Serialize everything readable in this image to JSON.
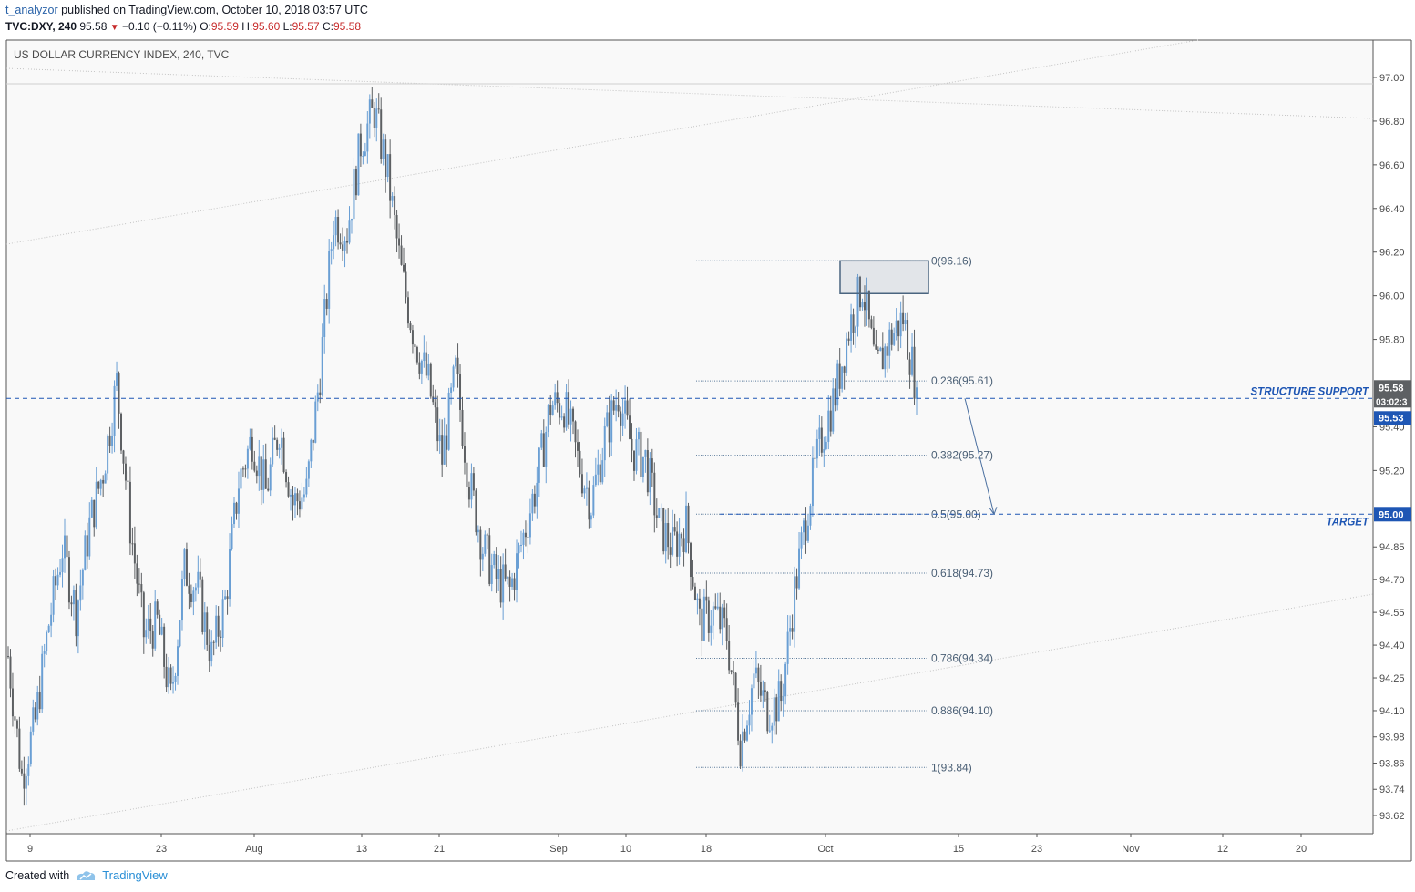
{
  "header": {
    "username": "t_analyzor",
    "published_text": "published on TradingView.com, October 10, 2018 03:57 UTC",
    "symbol": "TVC:DXY, 240",
    "last": "95.58",
    "change": "−0.10 (−0.11%)",
    "o_label": "O:",
    "o": "95.59",
    "h_label": "H:",
    "h": "95.60",
    "l_label": "L:",
    "l": "95.57",
    "c_label": "C:",
    "c": "95.58"
  },
  "footer": {
    "created_with": "Created with",
    "brand": "TradingView"
  },
  "chart_data": {
    "type": "candlestick",
    "title": "US DOLLAR CURRENCY INDEX, 240, TVC",
    "ylim": [
      93.55,
      97.1
    ],
    "y_ticks": [
      "97.00",
      "96.80",
      "96.60",
      "96.40",
      "96.20",
      "96.00",
      "95.80",
      "95.40",
      "95.20",
      "94.85",
      "94.70",
      "94.55",
      "94.40",
      "94.25",
      "94.10",
      "93.98",
      "93.86",
      "93.74",
      "93.62"
    ],
    "x_ticks": [
      "9",
      "23",
      "Aug",
      "13",
      "21",
      "Sep",
      "10",
      "18",
      "Oct",
      "15",
      "23",
      "Nov",
      "12",
      "20"
    ],
    "price_path": [
      {
        "date": "Jul 9",
        "close": 94.35
      },
      {
        "date": "Jul 10",
        "close": 93.8
      },
      {
        "date": "Jul 11",
        "close": 94.05
      },
      {
        "date": "Jul 12",
        "close": 94.5
      },
      {
        "date": "Jul 13",
        "close": 94.85
      },
      {
        "date": "Jul 16",
        "close": 94.55
      },
      {
        "date": "Jul 17",
        "close": 94.95
      },
      {
        "date": "Jul 18",
        "close": 95.2
      },
      {
        "date": "Jul 19",
        "close": 95.6
      },
      {
        "date": "Jul 20",
        "close": 94.95
      },
      {
        "date": "Jul 23",
        "close": 94.45
      },
      {
        "date": "Jul 24",
        "close": 94.5
      },
      {
        "date": "Jul 25",
        "close": 94.15
      },
      {
        "date": "Jul 26",
        "close": 94.75
      },
      {
        "date": "Jul 27",
        "close": 94.65
      },
      {
        "date": "Jul 30",
        "close": 94.35
      },
      {
        "date": "Jul 31",
        "close": 94.6
      },
      {
        "date": "Aug 1",
        "close": 95.15
      },
      {
        "date": "Aug 2",
        "close": 95.35
      },
      {
        "date": "Aug 3",
        "close": 95.1
      },
      {
        "date": "Aug 6",
        "close": 95.4
      },
      {
        "date": "Aug 7",
        "close": 95.05
      },
      {
        "date": "Aug 8",
        "close": 95.1
      },
      {
        "date": "Aug 9",
        "close": 95.65
      },
      {
        "date": "Aug 10",
        "close": 96.35
      },
      {
        "date": "Aug 13",
        "close": 96.3
      },
      {
        "date": "Aug 14",
        "close": 96.7
      },
      {
        "date": "Aug 15",
        "close": 96.85
      },
      {
        "date": "Aug 16",
        "close": 96.55
      },
      {
        "date": "Aug 17",
        "close": 96.1
      },
      {
        "date": "Aug 20",
        "close": 95.8
      },
      {
        "date": "Aug 21",
        "close": 95.6
      },
      {
        "date": "Aug 22",
        "close": 95.25
      },
      {
        "date": "Aug 23",
        "close": 95.65
      },
      {
        "date": "Aug 24",
        "close": 95.15
      },
      {
        "date": "Aug 27",
        "close": 94.85
      },
      {
        "date": "Aug 28",
        "close": 94.7
      },
      {
        "date": "Aug 29",
        "close": 94.65
      },
      {
        "date": "Aug 30",
        "close": 94.9
      },
      {
        "date": "Aug 31",
        "close": 95.15
      },
      {
        "date": "Sep 3",
        "close": 95.5
      },
      {
        "date": "Sep 4",
        "close": 95.5
      },
      {
        "date": "Sep 5",
        "close": 95.25
      },
      {
        "date": "Sep 6",
        "close": 95.05
      },
      {
        "date": "Sep 7",
        "close": 95.35
      },
      {
        "date": "Sep 10",
        "close": 95.55
      },
      {
        "date": "Sep 11",
        "close": 95.3
      },
      {
        "date": "Sep 12",
        "close": 95.25
      },
      {
        "date": "Sep 13",
        "close": 94.95
      },
      {
        "date": "Sep 14",
        "close": 94.85
      },
      {
        "date": "Sep 17",
        "close": 94.95
      },
      {
        "date": "Sep 18",
        "close": 94.5
      },
      {
        "date": "Sep 19",
        "close": 94.55
      },
      {
        "date": "Sep 20",
        "close": 94.45
      },
      {
        "date": "Sep 21",
        "close": 93.95
      },
      {
        "date": "Sep 24",
        "close": 94.25
      },
      {
        "date": "Sep 25",
        "close": 94.1
      },
      {
        "date": "Sep 26",
        "close": 94.15
      },
      {
        "date": "Sep 27",
        "close": 94.65
      },
      {
        "date": "Sep 28",
        "close": 95.05
      },
      {
        "date": "Oct 1",
        "close": 95.35
      },
      {
        "date": "Oct 2",
        "close": 95.55
      },
      {
        "date": "Oct 3",
        "close": 95.85
      },
      {
        "date": "Oct 4",
        "close": 96.05
      },
      {
        "date": "Oct 5",
        "close": 95.65
      },
      {
        "date": "Oct 8",
        "close": 95.8
      },
      {
        "date": "Oct 9",
        "close": 95.9
      },
      {
        "date": "Oct 10",
        "close": 95.58
      }
    ],
    "fibonacci": [
      {
        "label": "0(96.16)",
        "value": 96.16
      },
      {
        "label": "0.236(95.61)",
        "value": 95.61
      },
      {
        "label": "0.382(95.27)",
        "value": 95.27
      },
      {
        "label": "0.5(95.00)",
        "value": 95.0
      },
      {
        "label": "0.618(94.73)",
        "value": 94.73
      },
      {
        "label": "0.786(94.34)",
        "value": 94.34
      },
      {
        "label": "0.886(94.10)",
        "value": 94.1
      },
      {
        "label": "1(93.84)",
        "value": 93.84
      }
    ],
    "structure_support": {
      "label": "STRUCTURE SUPPORT",
      "value": 95.53,
      "tag": "95.53"
    },
    "target": {
      "label": "TARGET",
      "value": 95.0,
      "tag": "95.00"
    },
    "last_price": {
      "value": 95.58,
      "tag": "95.58",
      "countdown": "03:02:3"
    },
    "resistance_box": {
      "top": 96.16,
      "bottom": 96.01
    },
    "grid": false,
    "colors": {
      "up": "#6a9fd4",
      "down": "#5d6063",
      "annotation": "#1e56b4",
      "axis_text": "#4a4a4a"
    }
  }
}
